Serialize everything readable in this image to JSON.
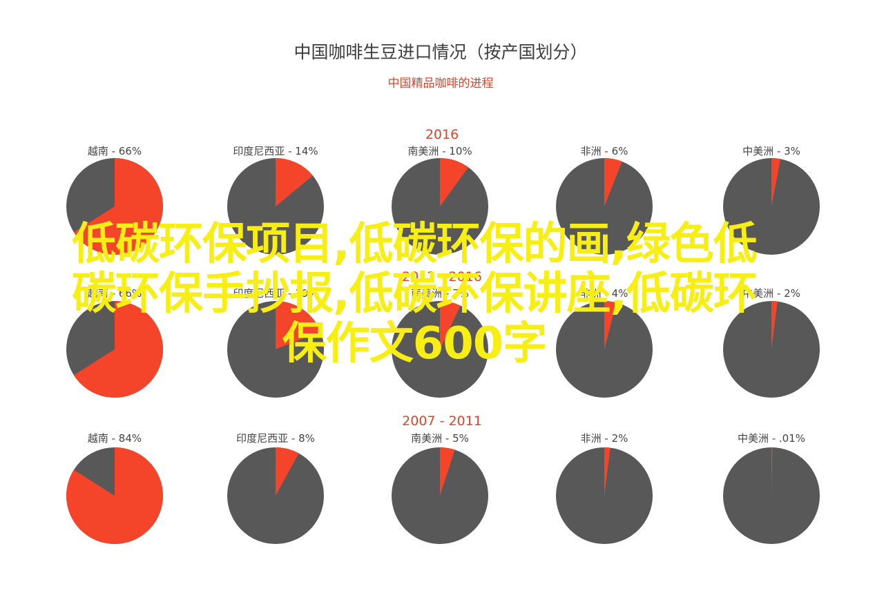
{
  "chart_data": {
    "type": "pie",
    "title": "中国咖啡生豆进口情况（按产国划分）",
    "subtitle": "中国精品咖啡的进程",
    "colors": {
      "share": "#f4452b",
      "rest": "#585858"
    },
    "groups": [
      {
        "period": "2016",
        "slices": [
          {
            "country": "越南",
            "label": "越南 - 66%",
            "value": 66
          },
          {
            "country": "印度尼西亚",
            "label": "印度尼西亚 - 14%",
            "value": 14
          },
          {
            "country": "南美洲",
            "label": "南美洲 - 10%",
            "value": 10
          },
          {
            "country": "非洲",
            "label": "非洲 - 6%",
            "value": 6
          },
          {
            "country": "中美洲",
            "label": "中美洲 - 3%",
            "value": 3
          }
        ]
      },
      {
        "period": "2012 - 2016",
        "slices": [
          {
            "country": "越南",
            "label": "越南 - 66%",
            "value": 66
          },
          {
            "country": "印度尼西亚",
            "label": "印度尼西亚 - 19%",
            "value": 19
          },
          {
            "country": "南美洲",
            "label": "南美洲 - 7%",
            "value": 7
          },
          {
            "country": "非洲",
            "label": "非洲 - 4%",
            "value": 4
          },
          {
            "country": "中美洲",
            "label": "中美洲 - 2%",
            "value": 2
          }
        ]
      },
      {
        "period": "2007 - 2011",
        "slices": [
          {
            "country": "越南",
            "label": "越南 - 84%",
            "value": 84
          },
          {
            "country": "印度尼西亚",
            "label": "印度尼西亚 - 8%",
            "value": 8
          },
          {
            "country": "南美洲",
            "label": "南美洲 - 5%",
            "value": 5
          },
          {
            "country": "非洲",
            "label": "非洲 - 2%",
            "value": 2
          },
          {
            "country": "中美洲",
            "label": "中美洲 - .01%",
            "value": 0.01
          }
        ]
      }
    ]
  },
  "overlay": {
    "lines": [
      "低碳环保项目,低碳环保的画,绿色低",
      "碳环保手抄报,低碳环保讲座,低碳环",
      "保作文600字"
    ]
  }
}
